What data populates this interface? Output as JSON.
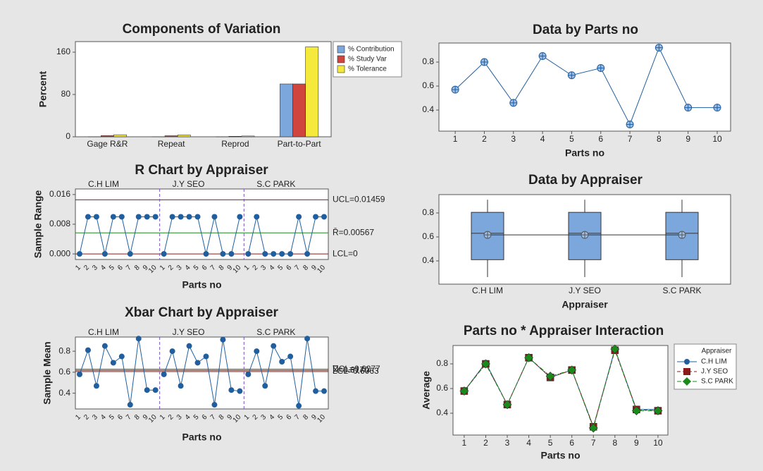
{
  "chart_data": [
    {
      "type": "bar",
      "title": "Components of Variation",
      "y_label": "Percent",
      "categories": [
        "Gage R&R",
        "Repeat",
        "Reprod",
        "Part-to-Part"
      ],
      "series": [
        {
          "name": "% Contribution",
          "color": "#7ba7dc",
          "values": [
            0.05,
            0.04,
            0.01,
            99.95
          ]
        },
        {
          "name": "% Study Var",
          "color": "#d0453e",
          "values": [
            2.2,
            2.0,
            0.9,
            99.98
          ]
        },
        {
          "name": "% Tolerance",
          "color": "#f5ea3c",
          "values": [
            3.8,
            3.5,
            1.5,
            170
          ]
        }
      ],
      "ylim": [
        0,
        180
      ],
      "yticks": [
        0,
        80,
        160
      ]
    },
    {
      "type": "control",
      "title": "R Chart by Appraiser",
      "y_label": "Sample Range",
      "x_label": "Parts no",
      "groups": [
        "C.H LIM",
        "J.Y SEO",
        "S.C PARK"
      ],
      "categories": [
        "1",
        "2",
        "3",
        "4",
        "5",
        "6",
        "7",
        "8",
        "9",
        "10",
        "1",
        "2",
        "3",
        "4",
        "5",
        "6",
        "7",
        "8",
        "9",
        "10",
        "1",
        "2",
        "3",
        "4",
        "5",
        "6",
        "7",
        "8",
        "9",
        "10"
      ],
      "color": "#1f5fa0",
      "values": [
        0,
        0.01,
        0.01,
        0,
        0.01,
        0.01,
        0,
        0.01,
        0.01,
        0.01,
        0,
        0.01,
        0.01,
        0.01,
        0.01,
        0,
        0.01,
        0,
        0,
        0.01,
        0,
        0.01,
        0,
        0,
        0,
        0,
        0.01,
        0,
        0.01,
        0.01
      ],
      "ref_lines": [
        {
          "value": 0.01459,
          "label": "UCL=0.01459",
          "color": "#8b1a1a"
        },
        {
          "value": 0.00567,
          "label": "R̄=0.00567",
          "color": "#1a8a1a"
        },
        {
          "value": 0,
          "label": "LCL=0",
          "color": "#8b1a1a"
        }
      ],
      "ylim": [
        -0.0015,
        0.0175
      ],
      "yticks": [
        {
          "value": 0,
          "label": "0.000"
        },
        {
          "value": 0.008,
          "label": "0.008"
        },
        {
          "value": 0.016,
          "label": "0.016"
        }
      ]
    },
    {
      "type": "control",
      "title": "Xbar Chart by Appraiser",
      "y_label": "Sample Mean",
      "x_label": "Parts no",
      "groups": [
        "C.H LIM",
        "J.Y SEO",
        "S.C PARK"
      ],
      "categories": [
        "1",
        "2",
        "3",
        "4",
        "5",
        "6",
        "7",
        "8",
        "9",
        "10",
        "1",
        "2",
        "3",
        "4",
        "5",
        "6",
        "7",
        "8",
        "9",
        "10",
        "1",
        "2",
        "3",
        "4",
        "5",
        "6",
        "7",
        "8",
        "9",
        "10"
      ],
      "color": "#1f5fa0",
      "values": [
        0.58,
        0.81,
        0.47,
        0.85,
        0.69,
        0.75,
        0.29,
        0.92,
        0.43,
        0.43,
        0.58,
        0.8,
        0.47,
        0.85,
        0.69,
        0.75,
        0.29,
        0.91,
        0.43,
        0.42,
        0.58,
        0.8,
        0.47,
        0.85,
        0.7,
        0.75,
        0.28,
        0.92,
        0.42,
        0.42
      ],
      "ref_lines": [
        {
          "value": 0.6277,
          "label": "UCL=0.6277",
          "color": "#8b1a1a"
        },
        {
          "value": 0.617,
          "label": "X̿=0.6170",
          "color": "#1a8a1a"
        },
        {
          "value": 0.6063,
          "label": "LCL=0.6063",
          "color": "#8b1a1a"
        }
      ],
      "ylim": [
        0.25,
        0.935
      ],
      "yticks": [
        0.4,
        0.6,
        0.8
      ]
    },
    {
      "type": "line",
      "title": "Data by Parts no",
      "x_label": "Parts no",
      "x": [
        1,
        2,
        3,
        4,
        5,
        6,
        7,
        8,
        9,
        10
      ],
      "color": "#1f5fa0",
      "marker": "circle-cross",
      "values": [
        0.57,
        0.8,
        0.46,
        0.85,
        0.69,
        0.75,
        0.28,
        0.92,
        0.42,
        0.42
      ],
      "xlim": [
        0.44,
        10.46
      ],
      "xticks": [
        1,
        2,
        3,
        4,
        5,
        6,
        7,
        8,
        9,
        10
      ],
      "ylim": [
        0.224,
        0.959
      ],
      "yticks": [
        0.4,
        0.6,
        0.8
      ]
    },
    {
      "type": "box",
      "title": "Data by Appraiser",
      "x_label": "Appraiser",
      "categories": [
        "C.H LIM",
        "J.Y SEO",
        "S.C PARK"
      ],
      "color": "#7ba7dc",
      "boxes": [
        {
          "min": 0.265,
          "q1": 0.41,
          "median": 0.63,
          "q3": 0.805,
          "max": 0.91,
          "mean": 0.617
        },
        {
          "min": 0.265,
          "q1": 0.41,
          "median": 0.63,
          "q3": 0.805,
          "max": 0.91,
          "mean": 0.617
        },
        {
          "min": 0.265,
          "q1": 0.41,
          "median": 0.63,
          "q3": 0.805,
          "max": 0.91,
          "mean": 0.617
        }
      ],
      "ylim": [
        0.206,
        0.953
      ],
      "yticks": [
        0.4,
        0.6,
        0.8
      ]
    },
    {
      "type": "line",
      "title": "Parts no * Appraiser Interaction",
      "y_label": "Average",
      "x_label": "Parts no",
      "legend_title": "Appraiser",
      "x": [
        1,
        2,
        3,
        4,
        5,
        6,
        7,
        8,
        9,
        10
      ],
      "series": [
        {
          "name": "C.H LIM",
          "color": "#1f5fa0",
          "marker": "circle",
          "dash": "solid",
          "values": [
            0.58,
            0.81,
            0.47,
            0.85,
            0.69,
            0.75,
            0.29,
            0.92,
            0.43,
            0.43
          ]
        },
        {
          "name": "J.Y SEO",
          "color": "#8b1a1a",
          "marker": "square",
          "dash": "dashed",
          "values": [
            0.58,
            0.8,
            0.47,
            0.85,
            0.69,
            0.75,
            0.29,
            0.91,
            0.43,
            0.42
          ]
        },
        {
          "name": "S.C PARK",
          "color": "#1a8a1a",
          "marker": "diamond",
          "dash": "dashdot",
          "values": [
            0.58,
            0.8,
            0.47,
            0.85,
            0.7,
            0.75,
            0.28,
            0.92,
            0.42,
            0.42
          ]
        }
      ],
      "xlim": [
        0.48,
        10.46
      ],
      "xticks": [
        1,
        2,
        3,
        4,
        5,
        6,
        7,
        8,
        9,
        10
      ],
      "ylim": [
        0.223,
        0.949
      ],
      "yticks": [
        0.4,
        0.6,
        0.8
      ]
    }
  ]
}
